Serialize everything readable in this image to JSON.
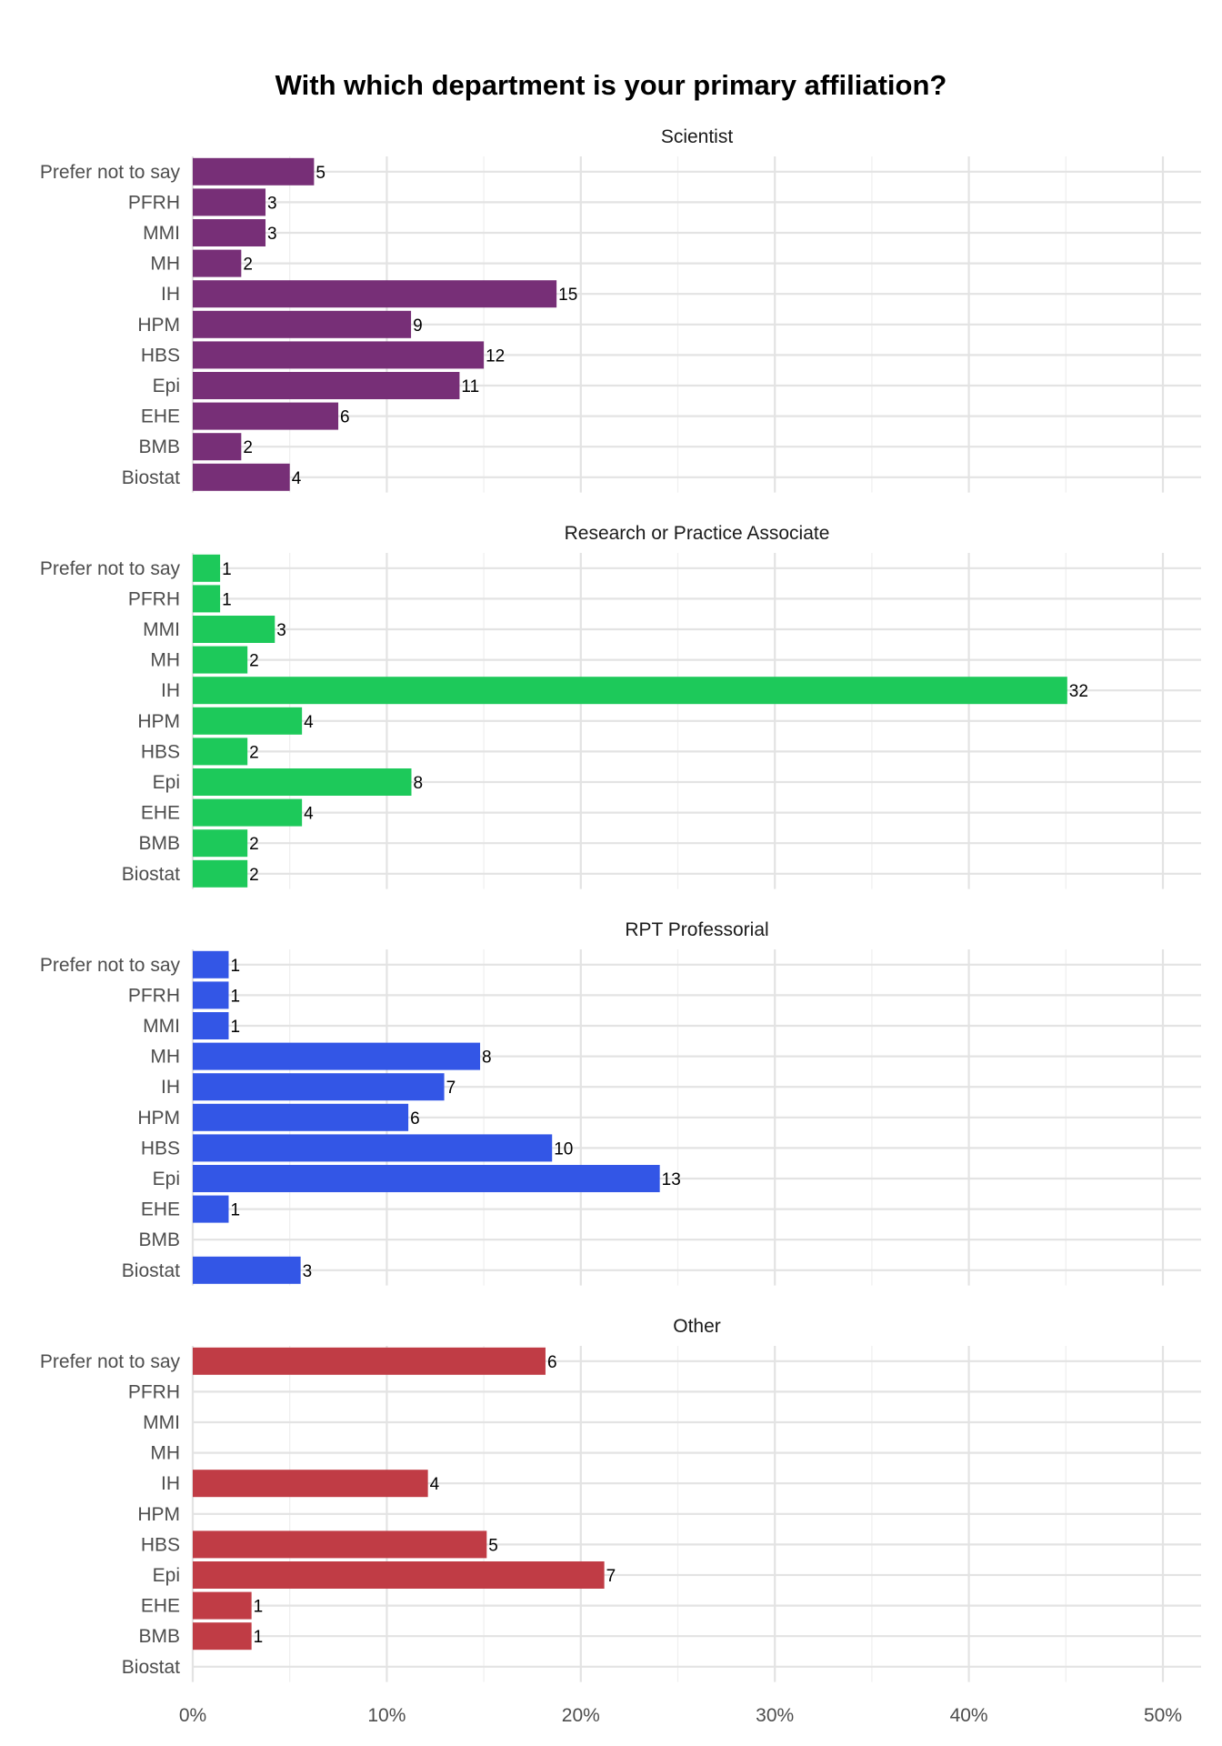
{
  "chart_data": {
    "type": "bar",
    "orientation": "horizontal",
    "title": "With which department is your primary affiliation?",
    "categories": [
      "Prefer not to say",
      "PFRH",
      "MMI",
      "MH",
      "IH",
      "HPM",
      "HBS",
      "Epi",
      "EHE",
      "BMB",
      "Biostat"
    ],
    "xlim": [
      0,
      0.52
    ],
    "x_ticks": [
      0,
      0.1,
      0.2,
      0.3,
      0.4,
      0.5
    ],
    "x_tick_labels": [
      "0%",
      "10%",
      "20%",
      "30%",
      "40%",
      "50%"
    ],
    "grid": true,
    "value_format": "percent",
    "panels": [
      {
        "name": "Scientist",
        "color": "#772f77",
        "counts": [
          5,
          3,
          3,
          2,
          15,
          9,
          12,
          11,
          6,
          2,
          4
        ],
        "values": [
          0.0625,
          0.0375,
          0.0375,
          0.025,
          0.1875,
          0.1125,
          0.15,
          0.1375,
          0.075,
          0.025,
          0.05
        ]
      },
      {
        "name": "Research or Practice Associate",
        "color": "#1dc95a",
        "counts": [
          1,
          1,
          3,
          2,
          32,
          4,
          2,
          8,
          4,
          2,
          2
        ],
        "values": [
          0.0141,
          0.0141,
          0.0423,
          0.0282,
          0.4507,
          0.0563,
          0.0282,
          0.1127,
          0.0563,
          0.0282,
          0.0282
        ]
      },
      {
        "name": "RPT Professorial",
        "color": "#3356e6",
        "counts": [
          1,
          1,
          1,
          8,
          7,
          6,
          10,
          13,
          1,
          null,
          3
        ],
        "values": [
          0.0185,
          0.0185,
          0.0185,
          0.1481,
          0.1296,
          0.1111,
          0.1852,
          0.2407,
          0.0185,
          null,
          0.0556
        ]
      },
      {
        "name": "Other",
        "color": "#c03c45",
        "counts": [
          6,
          null,
          null,
          null,
          4,
          null,
          5,
          7,
          1,
          1,
          null
        ],
        "values": [
          0.1818,
          null,
          null,
          null,
          0.1212,
          null,
          0.1515,
          0.2121,
          0.0303,
          0.0303,
          null
        ]
      }
    ]
  }
}
